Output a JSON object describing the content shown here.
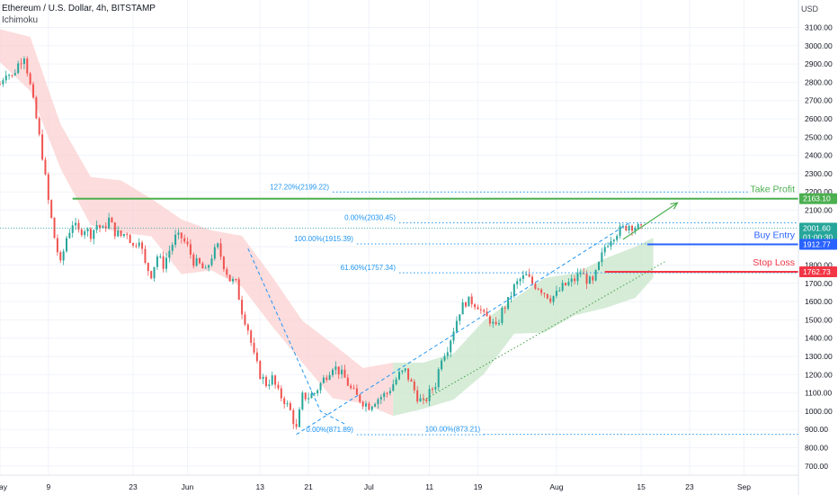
{
  "header": {
    "title": "Ethereum / U.S. Dollar, 4h, BITSTAMP",
    "indicator": "Ichimoku"
  },
  "chart_data": {
    "type": "candlestick",
    "price_unit": "USD",
    "y_ticks": [
      700,
      800,
      900,
      1000,
      1100,
      1200,
      1300,
      1400,
      1500,
      1600,
      1700,
      1800,
      1900,
      2000,
      2100,
      2200,
      2300,
      2400,
      2500,
      2600,
      2700,
      2800,
      2900,
      3000,
      3100
    ],
    "y_tick_labels": [
      "700.00",
      "800.00",
      "900.00",
      "1000.00",
      "1100.00",
      "1200.00",
      "1300.00",
      "1400.00",
      "1500.00",
      "1600.00",
      "1700.00",
      "1800.00",
      "1900.00",
      "2000.00",
      "2100.00",
      "2200.00",
      "2300.00",
      "2400.00",
      "2500.00",
      "2600.00",
      "2700.00",
      "2800.00",
      "2900.00",
      "3000.00",
      "3100.00"
    ],
    "x_tick_labels": [
      "May",
      "9",
      "23",
      "Jun",
      "13",
      "21",
      "Jul",
      "11",
      "19",
      "Aug",
      "15",
      "23",
      "Sep"
    ],
    "x_tick_days": [
      0,
      8,
      22,
      31,
      43,
      51,
      61,
      71,
      79,
      92,
      106,
      114,
      123
    ],
    "x_range_days": [
      0,
      132
    ],
    "y_range": [
      650,
      3250
    ],
    "price_path": [
      [
        0,
        2790
      ],
      [
        1,
        2860
      ],
      [
        2,
        2830
      ],
      [
        3,
        2900
      ],
      [
        4,
        2950
      ],
      [
        5,
        2780
      ],
      [
        6,
        2600
      ],
      [
        7,
        2400
      ],
      [
        8,
        2150
      ],
      [
        9,
        1950
      ],
      [
        10,
        1800
      ],
      [
        11,
        1950
      ],
      [
        12,
        2030
      ],
      [
        13,
        1980
      ],
      [
        14,
        2000
      ],
      [
        15,
        1970
      ],
      [
        16,
        2020
      ],
      [
        17,
        1990
      ],
      [
        18,
        2050
      ],
      [
        19,
        1980
      ],
      [
        20,
        1960
      ],
      [
        21,
        1980
      ],
      [
        22,
        1900
      ],
      [
        23,
        1950
      ],
      [
        24,
        1800
      ],
      [
        25,
        1750
      ],
      [
        26,
        1850
      ],
      [
        27,
        1800
      ],
      [
        28,
        1880
      ],
      [
        29,
        1950
      ],
      [
        30,
        1950
      ],
      [
        31,
        1900
      ],
      [
        32,
        1820
      ],
      [
        33,
        1800
      ],
      [
        34,
        1760
      ],
      [
        35,
        1850
      ],
      [
        36,
        1900
      ],
      [
        37,
        1800
      ],
      [
        38,
        1720
      ],
      [
        39,
        1700
      ],
      [
        40,
        1550
      ],
      [
        41,
        1450
      ],
      [
        42,
        1300
      ],
      [
        43,
        1200
      ],
      [
        44,
        1150
      ],
      [
        45,
        1180
      ],
      [
        46,
        1100
      ],
      [
        47,
        1060
      ],
      [
        48,
        1000
      ],
      [
        49,
        900
      ],
      [
        50,
        1080
      ],
      [
        51,
        1080
      ],
      [
        52,
        1100
      ],
      [
        53,
        1150
      ],
      [
        54,
        1200
      ],
      [
        55,
        1250
      ],
      [
        56,
        1220
      ],
      [
        57,
        1180
      ],
      [
        58,
        1120
      ],
      [
        59,
        1080
      ],
      [
        60,
        1050
      ],
      [
        61,
        1030
      ],
      [
        62,
        1060
      ],
      [
        63,
        1080
      ],
      [
        64,
        1100
      ],
      [
        65,
        1150
      ],
      [
        66,
        1200
      ],
      [
        67,
        1220
      ],
      [
        68,
        1150
      ],
      [
        69,
        1080
      ],
      [
        70,
        1040
      ],
      [
        71,
        1100
      ],
      [
        72,
        1150
      ],
      [
        73,
        1300
      ],
      [
        74,
        1350
      ],
      [
        75,
        1450
      ],
      [
        76,
        1550
      ],
      [
        77,
        1600
      ],
      [
        78,
        1600
      ],
      [
        79,
        1580
      ],
      [
        80,
        1520
      ],
      [
        81,
        1500
      ],
      [
        82,
        1450
      ],
      [
        83,
        1550
      ],
      [
        84,
        1600
      ],
      [
        85,
        1680
      ],
      [
        86,
        1720
      ],
      [
        87,
        1740
      ],
      [
        88,
        1700
      ],
      [
        89,
        1680
      ],
      [
        90,
        1650
      ],
      [
        91,
        1620
      ],
      [
        92,
        1640
      ],
      [
        93,
        1680
      ],
      [
        94,
        1700
      ],
      [
        95,
        1720
      ],
      [
        96,
        1760
      ],
      [
        97,
        1720
      ],
      [
        98,
        1700
      ],
      [
        99,
        1800
      ],
      [
        100,
        1900
      ],
      [
        101,
        1950
      ],
      [
        102,
        1980
      ],
      [
        103,
        2000
      ],
      [
        104,
        2020
      ],
      [
        105,
        2010
      ],
      [
        106,
        1995
      ]
    ],
    "cloud_path": [
      [
        0,
        3000
      ],
      [
        5,
        2900
      ],
      [
        10,
        2450
      ],
      [
        15,
        2150
      ],
      [
        20,
        2120
      ],
      [
        25,
        2060
      ],
      [
        30,
        1900
      ],
      [
        35,
        1880
      ],
      [
        40,
        1820
      ],
      [
        45,
        1600
      ],
      [
        50,
        1380
      ],
      [
        55,
        1220
      ],
      [
        60,
        1140
      ],
      [
        65,
        1120
      ],
      [
        70,
        1140
      ],
      [
        75,
        1190
      ],
      [
        80,
        1350
      ],
      [
        85,
        1520
      ],
      [
        90,
        1580
      ],
      [
        95,
        1640
      ],
      [
        100,
        1700
      ],
      [
        105,
        1760
      ],
      [
        108,
        1840
      ]
    ],
    "fib_levels": [
      {
        "label": "127.20%(2199.22)",
        "value": 2199.22,
        "x_start": 55,
        "x_end": 124
      },
      {
        "label": "0.00%(2030.45)",
        "value": 2030.45,
        "x_start": 66,
        "x_end": 132
      },
      {
        "label": "100.00%(1915.39)",
        "value": 1915.39,
        "x_start": 59,
        "x_end": 132
      },
      {
        "label": "61.60%(1757.34)",
        "value": 1757.34,
        "x_start": 66,
        "x_end": 132
      },
      {
        "label": "100.00%(873.21)",
        "value": 873.21,
        "x_start": 80,
        "x_end": 132
      },
      {
        "label": "0.00%(871.89)",
        "value": 871.89,
        "x_start": 59,
        "x_end": 80
      }
    ],
    "levels": [
      {
        "name": "Take Profit",
        "value": 2163.1,
        "price_label": "2163.10",
        "color": "#4caf50"
      },
      {
        "name": "Buy Entry",
        "value": 1912.77,
        "price_label": "1912.77",
        "color": "#2962ff"
      },
      {
        "name": "Stop Loss",
        "value": 1762.73,
        "price_label": "1762.73",
        "color": "#f23645"
      }
    ],
    "current_price": {
      "value": 2001.6,
      "label": "2001.60",
      "countdown": "01:00:30",
      "color": "#26a69a"
    },
    "trendlines": {
      "upper": [
        [
          49,
          873
        ],
        [
          104,
          2030
        ]
      ],
      "lower": [
        [
          70,
          1060
        ],
        [
          110,
          1820
        ]
      ],
      "descending": [
        [
          41,
          1890
        ],
        [
          53,
          1000
        ],
        [
          57,
          930
        ]
      ]
    },
    "arrow": {
      "from": [
        103,
        1940
      ],
      "to": [
        112,
        2140
      ]
    }
  },
  "colors": {
    "grid": "#f0f3fa",
    "axis_text": "#131722",
    "fib": "#2196f3",
    "bull": "#26a69a",
    "bear": "#ef5350",
    "cloud_bear": "#fbd0d0",
    "cloud_bull": "#c8e6c9"
  }
}
